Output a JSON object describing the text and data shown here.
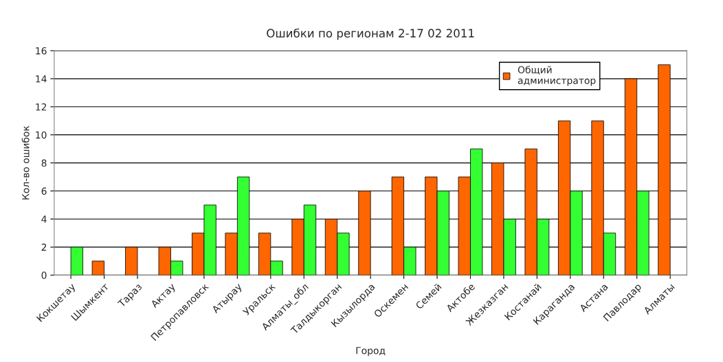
{
  "chart_data": {
    "type": "bar",
    "title": "Ошибки по регионам 2-17 02 2011",
    "xlabel": "Город",
    "ylabel": "Кол-во ошибок",
    "categories": [
      "Кокшетау",
      "Шымкент",
      "Тараз",
      "Актау",
      "Петропавловск",
      "Атырау",
      "Уральск",
      "Алматы_обл",
      "Талдыкорган",
      "Кызылорда",
      "Оскемен",
      "Семей",
      "Актобе",
      "Жезказган",
      "Костанай",
      "Караганда",
      "Астана",
      "Павлодар",
      "Алматы"
    ],
    "series": [
      {
        "name": "Общий администратор",
        "color": "#ff6600",
        "values": [
          null,
          1,
          2,
          2,
          3,
          3,
          3,
          4,
          4,
          6,
          7,
          7,
          7,
          8,
          9,
          11,
          11,
          14,
          15
        ]
      },
      {
        "color": "#33ff33",
        "values": [
          2,
          null,
          null,
          1,
          5,
          7,
          1,
          5,
          3,
          null,
          2,
          6,
          9,
          4,
          4,
          6,
          3,
          6,
          null
        ]
      }
    ],
    "ylim": [
      0,
      16
    ],
    "yticks": [
      0,
      2,
      4,
      6,
      8,
      10,
      12,
      14,
      16
    ],
    "grid": "y",
    "legend": "top right"
  }
}
